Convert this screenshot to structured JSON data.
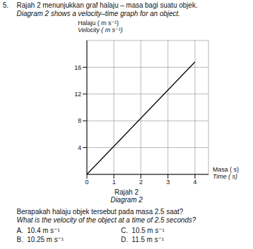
{
  "question_number": "5.",
  "intro": [
    "Rajah 2 menunjukkan graf halaju – masa bagi suatu objek.",
    "Diagram 2 shows a velocity–time graph for an object."
  ],
  "chart_data": {
    "type": "line",
    "y_label": [
      "Halaju ( m s⁻¹)",
      "Velocity ( m s⁻¹)"
    ],
    "x_label": [
      "Masa ( s)",
      "Time ( s)"
    ],
    "caption": [
      "Rajah 2",
      "Diagram 2"
    ],
    "x": [
      0,
      4
    ],
    "values": [
      0,
      16.8
    ],
    "color": "#000000",
    "xlim": [
      0,
      4.5
    ],
    "ylim": [
      0,
      20
    ],
    "xticks": [
      0,
      1,
      2,
      3,
      4
    ],
    "yticks": [
      4,
      8,
      12,
      16
    ],
    "grid": true
  },
  "question": [
    "Berapakah halaju objek tersebut pada masa 2.5 saat?",
    "What is the velocity of the object at a time of 2.5 seconds?"
  ],
  "options": [
    {
      "letter": "A",
      "text": "10.4 m s⁻¹"
    },
    {
      "letter": "B",
      "text": "10.25 m s⁻¹"
    },
    {
      "letter": "C",
      "text": "10.5 m s⁻¹"
    },
    {
      "letter": "D",
      "text": "11.5 m s⁻¹"
    }
  ]
}
